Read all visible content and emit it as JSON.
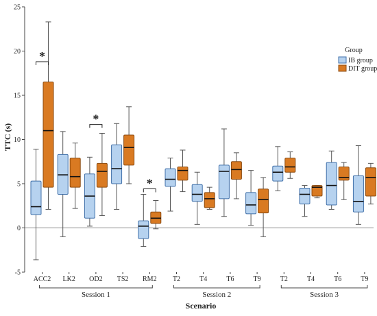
{
  "chart_data": {
    "type": "boxplot",
    "xlabel": "Scenario",
    "ylabel": "TTC (s)",
    "ylim": [
      -5,
      25
    ],
    "yticks": [
      -5,
      0,
      5,
      10,
      15,
      20,
      25
    ],
    "reference_line": 0,
    "legend": {
      "title": "Group",
      "placement": "top-right",
      "entries": [
        {
          "name": "IB group",
          "color": "#b6d2ef",
          "stroke": "#3f6fa8"
        },
        {
          "name": "DIT group",
          "color": "#d97a22",
          "stroke": "#8a4a10"
        }
      ]
    },
    "categories": [
      "ACC2",
      "LK2",
      "OD2",
      "TS2",
      "RM2",
      "T2",
      "T4",
      "T6",
      "T9",
      "T2",
      "T4",
      "T6",
      "T9"
    ],
    "sessions": [
      {
        "label": "Session 1",
        "from": 0,
        "to": 4
      },
      {
        "label": "Session 2",
        "from": 5,
        "to": 8
      },
      {
        "label": "Session 3",
        "from": 9,
        "to": 12
      }
    ],
    "significance": [
      {
        "category_index": 0,
        "label": "*"
      },
      {
        "category_index": 2,
        "label": "*"
      },
      {
        "category_index": 4,
        "label": "*"
      }
    ],
    "series": [
      {
        "name": "IB group",
        "boxes": [
          {
            "min": -3.6,
            "q1": 1.5,
            "median": 2.4,
            "q3": 5.3,
            "max": 8.9
          },
          {
            "min": -1.0,
            "q1": 3.8,
            "median": 6.0,
            "q3": 8.3,
            "max": 10.9
          },
          {
            "min": 0.2,
            "q1": 1.1,
            "median": 3.6,
            "q3": 6.1,
            "max": 8.0
          },
          {
            "min": 2.1,
            "q1": 5.0,
            "median": 6.7,
            "q3": 9.4,
            "max": 11.8
          },
          {
            "min": -2.1,
            "q1": -1.2,
            "median": 0.2,
            "q3": 0.8,
            "max": 3.8
          },
          {
            "min": 1.9,
            "q1": 4.7,
            "median": 5.5,
            "q3": 6.7,
            "max": 7.9
          },
          {
            "min": 0.4,
            "q1": 3.0,
            "median": 3.8,
            "q3": 4.9,
            "max": 6.3
          },
          {
            "min": 1.3,
            "q1": 3.3,
            "median": 6.4,
            "q3": 7.1,
            "max": 11.2
          },
          {
            "min": 0.3,
            "q1": 1.6,
            "median": 2.6,
            "q3": 4.0,
            "max": 6.5
          },
          {
            "min": 4.2,
            "q1": 5.3,
            "median": 6.3,
            "q3": 7.0,
            "max": 9.2
          },
          {
            "min": 1.3,
            "q1": 2.7,
            "median": 3.8,
            "q3": 4.5,
            "max": 4.8
          },
          {
            "min": 2.1,
            "q1": 2.6,
            "median": 4.8,
            "q3": 7.4,
            "max": 8.7
          },
          {
            "min": 0.4,
            "q1": 1.8,
            "median": 3.0,
            "q3": 5.9,
            "max": 9.3
          }
        ]
      },
      {
        "name": "DIT group",
        "boxes": [
          {
            "min": 2.1,
            "q1": 4.6,
            "median": 11.0,
            "q3": 16.5,
            "max": 23.3
          },
          {
            "min": 2.2,
            "q1": 4.6,
            "median": 5.8,
            "q3": 7.9,
            "max": 9.6
          },
          {
            "min": 1.4,
            "q1": 4.6,
            "median": 6.4,
            "q3": 7.3,
            "max": 10.7
          },
          {
            "min": 5.0,
            "q1": 7.1,
            "median": 9.1,
            "q3": 10.5,
            "max": 13.7
          },
          {
            "min": -0.1,
            "q1": 0.5,
            "median": 1.1,
            "q3": 1.8,
            "max": 3.1
          },
          {
            "min": 4.1,
            "q1": 5.4,
            "median": 6.5,
            "q3": 6.9,
            "max": 8.8
          },
          {
            "min": 2.1,
            "q1": 2.3,
            "median": 3.3,
            "q3": 4.0,
            "max": 4.6
          },
          {
            "min": 3.3,
            "q1": 5.5,
            "median": 6.6,
            "q3": 7.5,
            "max": 8.5
          },
          {
            "min": -1.0,
            "q1": 1.7,
            "median": 3.2,
            "q3": 4.4,
            "max": 5.7
          },
          {
            "min": 5.6,
            "q1": 6.3,
            "median": 6.9,
            "q3": 7.9,
            "max": 8.6
          },
          {
            "min": 3.4,
            "q1": 3.6,
            "median": 4.6,
            "q3": 4.8,
            "max": 4.8
          },
          {
            "min": 3.2,
            "q1": 5.4,
            "median": 5.7,
            "q3": 6.9,
            "max": 7.4
          },
          {
            "min": 2.7,
            "q1": 3.6,
            "median": 5.7,
            "q3": 6.8,
            "max": 7.3
          }
        ]
      }
    ]
  }
}
